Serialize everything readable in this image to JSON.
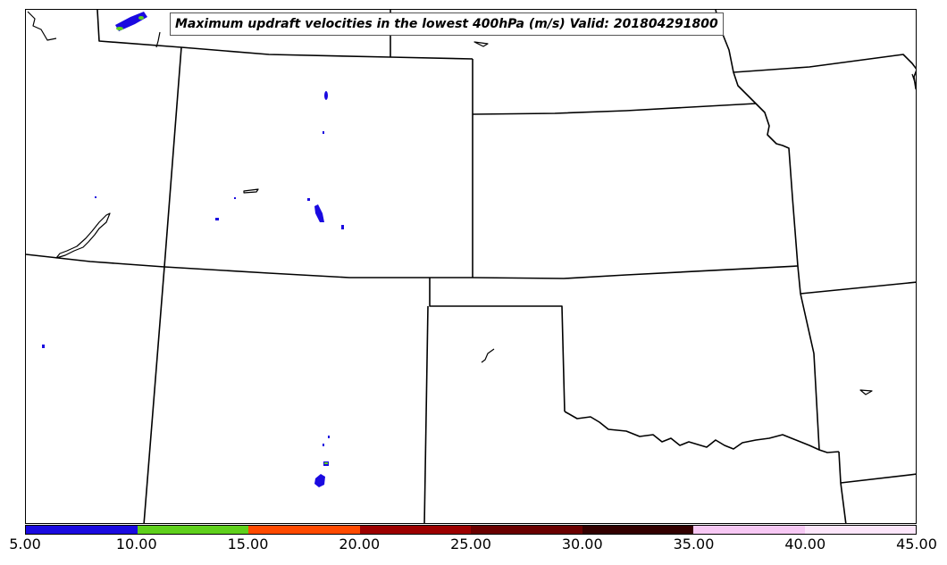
{
  "title": "Maximum updraft velocities in the lowest 400hPa (m/s) Valid: 201804291800",
  "colorbar": {
    "labels": [
      "5.00",
      "10.00",
      "15.00",
      "20.00",
      "25.00",
      "30.00",
      "35.00",
      "40.00",
      "45.00"
    ],
    "colors": [
      "#1a0ae0",
      "#5fd01c",
      "#ff4a00",
      "#9c0000",
      "#6a0000",
      "#330000",
      "#f7c8f4",
      "#fde6fb"
    ]
  },
  "legend_colors": {
    "boundary": "#000000",
    "updraft_low": "#1a0ae0",
    "updraft_mid": "#5fd01c"
  }
}
